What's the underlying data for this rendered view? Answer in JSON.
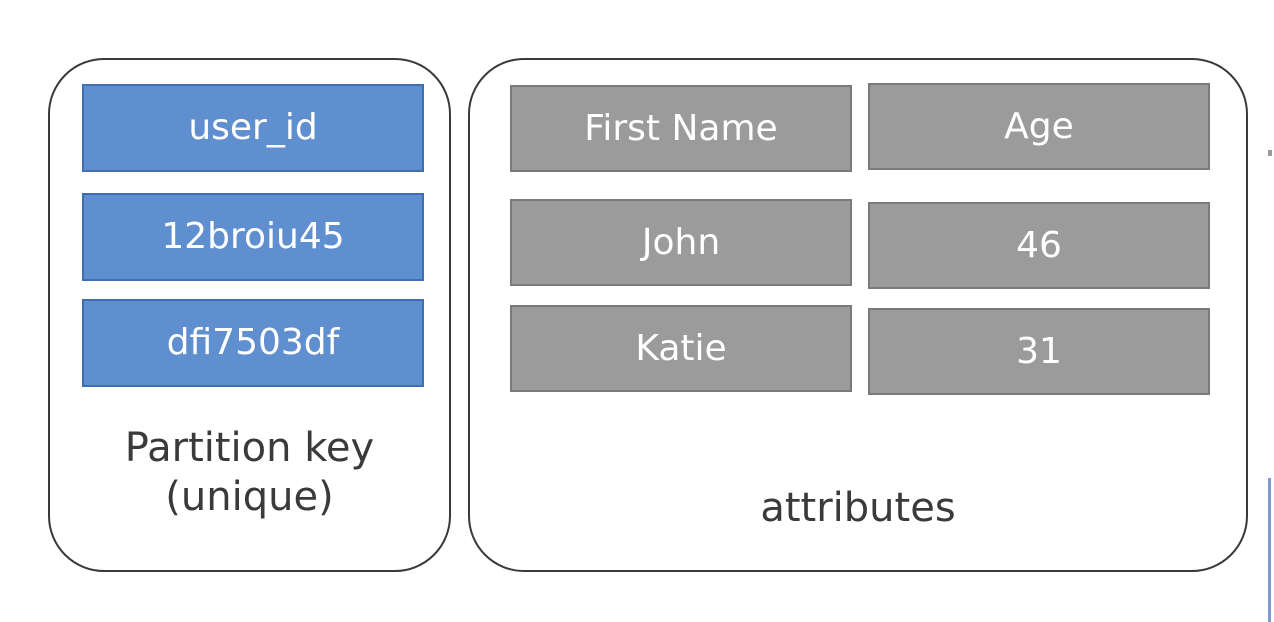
{
  "partition_key": {
    "header": "user_id",
    "values": [
      "12broiu45",
      "dfi7503df"
    ],
    "caption_line1": "Partition key",
    "caption_line2": "(unique)",
    "fill_color": "#5f8fce"
  },
  "attributes": {
    "headers": [
      "First Name",
      "Age"
    ],
    "rows": [
      [
        "John",
        "46"
      ],
      [
        "Katie",
        "31"
      ]
    ],
    "caption": "attributes",
    "fill_color": "#9b9b9b"
  }
}
